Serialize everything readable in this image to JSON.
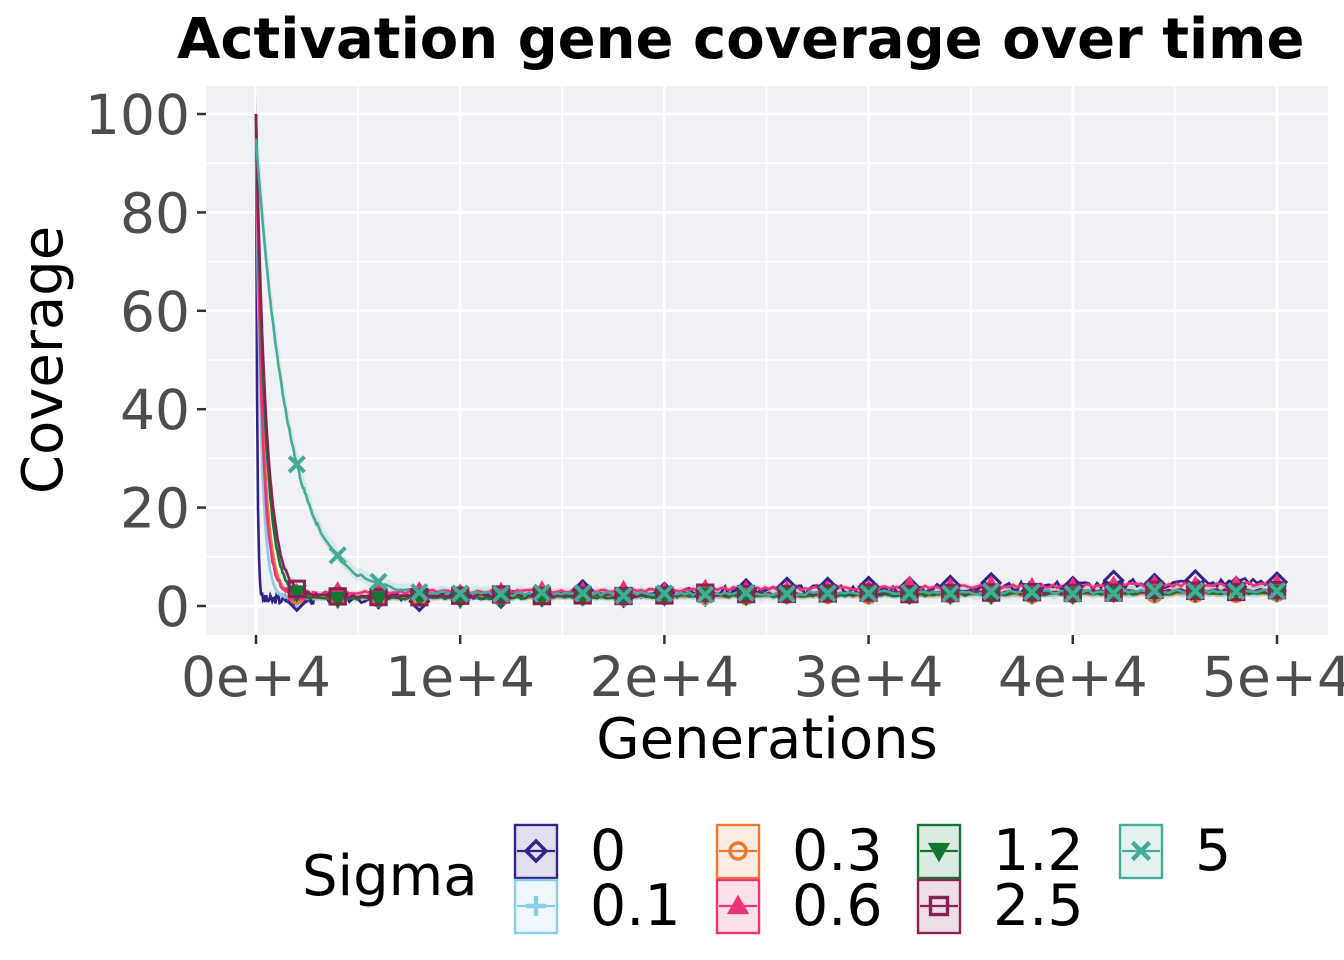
{
  "chart_data": {
    "type": "line",
    "title": "Activation gene coverage over time",
    "xlabel": "Generations",
    "ylabel": "Coverage",
    "xlim": [
      -2500,
      52500
    ],
    "ylim": [
      -5.5,
      106
    ],
    "x_ticks": [
      0,
      10000,
      20000,
      30000,
      40000,
      50000
    ],
    "x_tick_labels": [
      "0e+4",
      "1e+4",
      "2e+4",
      "3e+4",
      "4e+4",
      "5e+4"
    ],
    "y_ticks": [
      0,
      20,
      40,
      60,
      80,
      100
    ],
    "y_tick_labels": [
      "0",
      "20",
      "40",
      "60",
      "80",
      "100"
    ],
    "grid": true,
    "legend": {
      "title": "Sigma",
      "position": "bottom",
      "entries": [
        {
          "label": "0",
          "color": "#332288",
          "shape": "diamond"
        },
        {
          "label": "0.1",
          "color": "#88CCEE",
          "shape": "plus"
        },
        {
          "label": "0.3",
          "color": "#EE7733",
          "shape": "circle"
        },
        {
          "label": "0.6",
          "color": "#EE3377",
          "shape": "triangle"
        },
        {
          "label": "1.2",
          "color": "#117733",
          "shape": "triangle-down"
        },
        {
          "label": "2.5",
          "color": "#882255",
          "shape": "square"
        },
        {
          "label": "5",
          "color": "#44AA99",
          "shape": "cross"
        }
      ]
    },
    "series": [
      {
        "name": "0",
        "color": "#332288",
        "shape": "diamond",
        "peak": 100,
        "tau": 60,
        "start": 1.2,
        "end": 5.0,
        "noise": 1.0,
        "seed": 3,
        "band": 0.4
      },
      {
        "name": "0.1",
        "color": "#88CCEE",
        "shape": "plus",
        "peak": 95,
        "tau": 250,
        "start": 1.5,
        "end": 2.5,
        "noise": 0.2,
        "seed": 7,
        "band": 0.6
      },
      {
        "name": "0.3",
        "color": "#EE7733",
        "shape": "circle",
        "peak": 98,
        "tau": 350,
        "start": 1.6,
        "end": 2.6,
        "noise": 0.2,
        "seed": 11,
        "band": 0.6
      },
      {
        "name": "0.6",
        "color": "#EE3377",
        "shape": "triangle",
        "peak": 100,
        "tau": 300,
        "start": 2.5,
        "end": 4.5,
        "noise": 0.4,
        "seed": 13,
        "band": 0.6
      },
      {
        "name": "1.2",
        "color": "#117733",
        "shape": "triangle-down",
        "peak": 100,
        "tau": 450,
        "start": 1.4,
        "end": 2.8,
        "noise": 0.3,
        "seed": 17,
        "band": 0.6
      },
      {
        "name": "2.5",
        "color": "#882255",
        "shape": "square",
        "peak": 100,
        "tau": 500,
        "start": 1.8,
        "end": 3.2,
        "noise": 0.3,
        "seed": 19,
        "band": 0.8
      },
      {
        "name": "5",
        "color": "#44AA99",
        "shape": "cross",
        "peak": 95,
        "tau": 1600,
        "start": 2.2,
        "end": 3.0,
        "noise": 0.4,
        "seed": 23,
        "band": 1.2
      }
    ]
  }
}
